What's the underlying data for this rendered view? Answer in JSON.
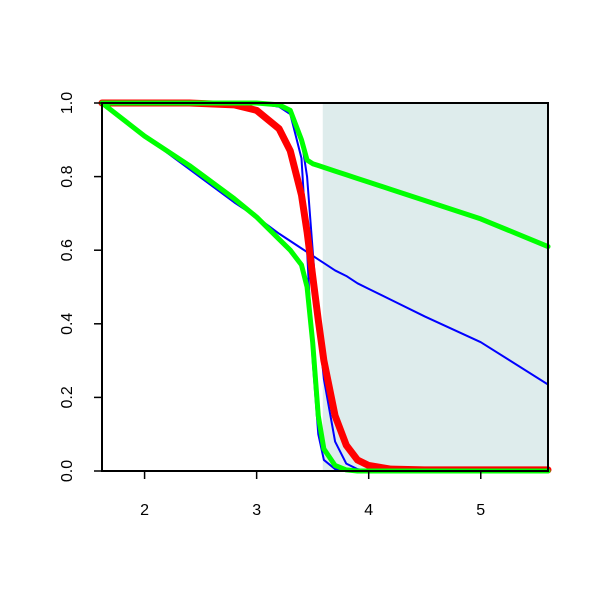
{
  "chart_data": {
    "type": "line",
    "x": [
      1.62,
      2.0,
      2.4,
      2.8,
      3.0,
      3.2,
      3.3,
      3.4,
      3.45,
      3.5,
      3.55,
      3.6,
      3.7,
      3.8,
      3.9,
      4.0,
      4.2,
      4.5,
      5.0,
      5.6
    ],
    "series": [
      {
        "color": "#0000ff",
        "width": 2,
        "values": [
          1.0,
          0.91,
          0.82,
          0.73,
          0.69,
          0.645,
          0.625,
          0.605,
          0.595,
          0.585,
          0.575,
          0.565,
          0.545,
          0.53,
          0.51,
          0.495,
          0.465,
          0.42,
          0.35,
          0.235
        ]
      },
      {
        "color": "#0000ff",
        "width": 2,
        "values": [
          1,
          1,
          1,
          1,
          1,
          0.99,
          0.97,
          0.85,
          0.6,
          0.3,
          0.1,
          0.03,
          0.005,
          0,
          0,
          0,
          0,
          0,
          0,
          0
        ]
      },
      {
        "color": "#0000ff",
        "width": 2,
        "values": [
          1,
          1,
          1,
          1,
          1,
          0.99,
          0.97,
          0.9,
          0.8,
          0.6,
          0.4,
          0.25,
          0.08,
          0.02,
          0.005,
          0,
          0,
          0,
          0,
          0
        ]
      },
      {
        "color": "#ff0000",
        "width": 7,
        "values": [
          1,
          1,
          1,
          0.995,
          0.98,
          0.93,
          0.87,
          0.75,
          0.65,
          0.53,
          0.41,
          0.3,
          0.15,
          0.07,
          0.03,
          0.015,
          0.005,
          0.003,
          0.003,
          0.003
        ]
      },
      {
        "color": "#00ff00",
        "width": 5,
        "values": [
          1,
          1,
          1,
          1,
          1,
          0.995,
          0.98,
          0.9,
          0.845,
          0.835,
          0.83,
          0.825,
          0.815,
          0.805,
          0.795,
          0.785,
          0.765,
          0.735,
          0.685,
          0.61
        ]
      },
      {
        "color": "#00ff00",
        "width": 5,
        "values": [
          1,
          0.91,
          0.83,
          0.74,
          0.69,
          0.63,
          0.6,
          0.56,
          0.5,
          0.35,
          0.15,
          0.06,
          0.015,
          0.003,
          0,
          0,
          0,
          0,
          0,
          0
        ]
      }
    ],
    "shade": {
      "from": 3.59,
      "to": 5.6,
      "color": "#deecec"
    },
    "xlim": [
      1.62,
      5.6
    ],
    "ylim": [
      0,
      1
    ],
    "xticks": [
      2,
      3,
      4,
      5
    ],
    "yticks": [
      {
        "value": 0,
        "label": "0.0"
      },
      0.2,
      0.4,
      0.6,
      0.8,
      {
        "value": 1,
        "label": "1.0"
      }
    ]
  }
}
